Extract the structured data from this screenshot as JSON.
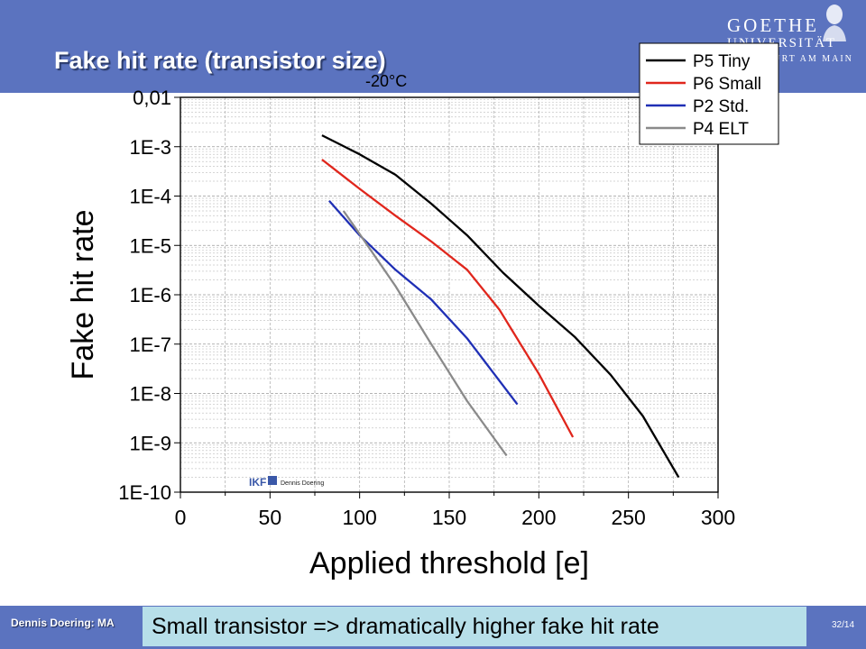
{
  "slide": {
    "title": "Fake hit rate (transistor size)",
    "callout": "Small transistor => dramatically higher fake hit rate",
    "footer_author": "Dennis Doering: MA",
    "page": "32/14"
  },
  "logo": {
    "line1": "GOETHE",
    "line2": "UNIVERSITÄT",
    "line3": "FRANKFURT AM MAIN"
  },
  "watermark": {
    "badge": "IKF",
    "name": "Dennis Doering"
  },
  "colors": {
    "band": "#5b73bf",
    "callout_bg": "#b7dfe9"
  },
  "chart_data": {
    "type": "line",
    "annotation": "-20°C",
    "xlabel": "Applied threshold [e]",
    "ylabel": "Fake hit rate",
    "xlim": [
      0,
      300
    ],
    "ylim": [
      1e-10,
      0.01
    ],
    "yscale": "log",
    "grid": true,
    "legend_position": "top-right",
    "x_ticks": [
      0,
      50,
      100,
      150,
      200,
      250,
      300
    ],
    "y_ticks": [
      {
        "value": 0.01,
        "label": "0,01"
      },
      {
        "value": 0.001,
        "label": "1E-3"
      },
      {
        "value": 0.0001,
        "label": "1E-4"
      },
      {
        "value": 1e-05,
        "label": "1E-5"
      },
      {
        "value": 1e-06,
        "label": "1E-6"
      },
      {
        "value": 1e-07,
        "label": "1E-7"
      },
      {
        "value": 1e-08,
        "label": "1E-8"
      },
      {
        "value": 1e-09,
        "label": "1E-9"
      },
      {
        "value": 1e-10,
        "label": "1E-10"
      }
    ],
    "series": [
      {
        "name": "P5 Tiny",
        "color": "#000000",
        "x": [
          79,
          100,
          120,
          140,
          160,
          180,
          200,
          220,
          240,
          258,
          278
        ],
        "y": [
          0.0017,
          0.0007,
          0.00027,
          7e-05,
          1.6e-05,
          2.8e-06,
          6e-07,
          1.4e-07,
          2.4e-08,
          3.5e-09,
          2e-10
        ]
      },
      {
        "name": "P6 Small",
        "color": "#e0261c",
        "x": [
          79,
          100,
          120,
          140,
          160,
          178,
          200,
          219
        ],
        "y": [
          0.00055,
          0.00014,
          4e-05,
          1.2e-05,
          3.2e-06,
          5e-07,
          2.5e-08,
          1.3e-09
        ]
      },
      {
        "name": "P2 Std.",
        "color": "#1f2fb5",
        "x": [
          83,
          100,
          120,
          140,
          160,
          188
        ],
        "y": [
          8e-05,
          1.6e-05,
          3.2e-06,
          8e-07,
          1.3e-07,
          6e-09
        ]
      },
      {
        "name": "P4 ELT",
        "color": "#8a8a8a",
        "x": [
          91,
          100,
          120,
          140,
          160,
          182
        ],
        "y": [
          5e-05,
          1.7e-05,
          1.5e-06,
          1e-07,
          7e-09,
          5.5e-10
        ]
      }
    ]
  }
}
